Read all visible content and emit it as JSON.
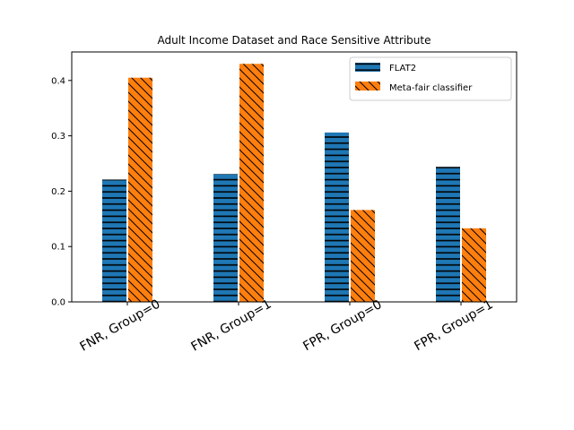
{
  "chart_data": {
    "type": "bar",
    "title": "Adult Income Dataset and Race Sensitive Attribute",
    "xlabel": "",
    "ylabel": "",
    "categories": [
      "FNR, Group=0",
      "FNR, Group=1",
      "FPR, Group=0",
      "FPR, Group=1"
    ],
    "series": [
      {
        "name": "FLAT2",
        "values": [
          0.221,
          0.231,
          0.306,
          0.244
        ],
        "color": "#1f77b4",
        "hatch": "horizontal"
      },
      {
        "name": "Meta-fair classifier",
        "values": [
          0.405,
          0.43,
          0.166,
          0.133
        ],
        "color": "#ff7f0e",
        "hatch": "diagonal"
      }
    ],
    "ylim": [
      0,
      0.4515
    ],
    "yticks": [
      0.0,
      0.1,
      0.2,
      0.3,
      0.4
    ],
    "ytick_labels": [
      "0.0",
      "0.1",
      "0.2",
      "0.3",
      "0.4"
    ],
    "legend_position": "top-right",
    "grid": false
  }
}
